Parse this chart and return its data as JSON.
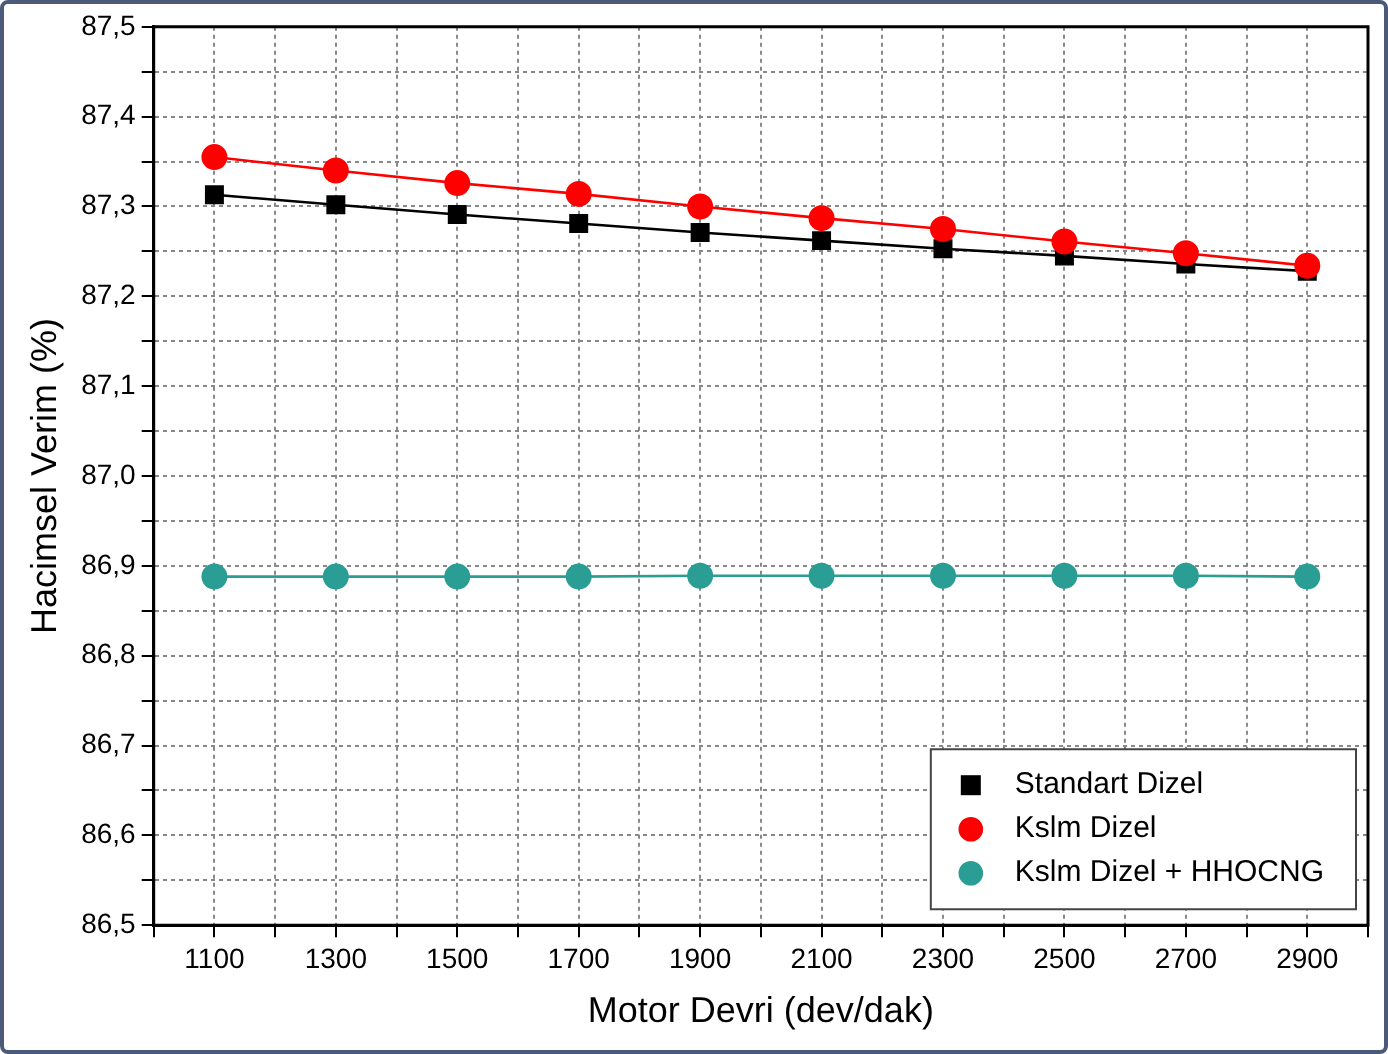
{
  "chart_data": {
    "type": "line",
    "xlabel": "Motor Devri (dev/dak)",
    "ylabel": "Hacimsel Verim (%)",
    "x": [
      1100,
      1300,
      1500,
      1700,
      1900,
      2100,
      2300,
      2500,
      2700,
      2900
    ],
    "series": [
      {
        "name": "Standart Dizel",
        "color": "#000000",
        "marker": "square",
        "values": [
          87.313,
          87.302,
          87.291,
          87.281,
          87.271,
          87.262,
          87.253,
          87.245,
          87.236,
          87.228
        ]
      },
      {
        "name": "Kslm Dizel",
        "color": "#ff0000",
        "marker": "circle",
        "values": [
          87.355,
          87.34,
          87.326,
          87.314,
          87.3,
          87.287,
          87.275,
          87.261,
          87.248,
          87.234
        ]
      },
      {
        "name": "Kslm Dizel + HHOCNG",
        "color": "#2a9d95",
        "marker": "circle",
        "values": [
          86.888,
          86.888,
          86.888,
          86.888,
          86.889,
          86.889,
          86.889,
          86.889,
          86.889,
          86.888
        ]
      }
    ],
    "xlim": [
      1000,
      3000
    ],
    "xticks": [
      {
        "value": 1000,
        "label": null
      },
      1100,
      {
        "value": 1200,
        "label": null
      },
      1300,
      {
        "value": 1400,
        "label": null
      },
      1500,
      {
        "value": 1600,
        "label": null
      },
      1700,
      {
        "value": 1800,
        "label": null
      },
      1900,
      {
        "value": 2000,
        "label": null
      },
      2100,
      {
        "value": 2200,
        "label": null
      },
      2300,
      {
        "value": 2400,
        "label": null
      },
      2500,
      {
        "value": 2600,
        "label": null
      },
      2700,
      {
        "value": 2800,
        "label": null
      },
      2900,
      {
        "value": 3000,
        "label": null
      }
    ],
    "ylim": [
      86.5,
      87.5
    ],
    "yticks": [
      {
        "value": 86.5,
        "label": "86,5"
      },
      {
        "value": 86.55,
        "label": null
      },
      {
        "value": 86.6,
        "label": "86,6"
      },
      {
        "value": 86.65,
        "label": null
      },
      {
        "value": 86.7,
        "label": "86,7"
      },
      {
        "value": 86.75,
        "label": null
      },
      {
        "value": 86.8,
        "label": "86,8"
      },
      {
        "value": 86.85,
        "label": null
      },
      {
        "value": 86.9,
        "label": "86,9"
      },
      {
        "value": 86.95,
        "label": null
      },
      {
        "value": 87.0,
        "label": "87,0"
      },
      {
        "value": 87.05,
        "label": null
      },
      {
        "value": 87.1,
        "label": "87,1"
      },
      {
        "value": 87.15,
        "label": null
      },
      {
        "value": 87.2,
        "label": "87,2"
      },
      {
        "value": 87.25,
        "label": null
      },
      {
        "value": 87.3,
        "label": "87,3"
      },
      {
        "value": 87.35,
        "label": null
      },
      {
        "value": 87.4,
        "label": "87,4"
      },
      {
        "value": 87.45,
        "label": null
      },
      {
        "value": 87.5,
        "label": "87,5"
      }
    ],
    "grid": true,
    "legend": "bottom right",
    "line_style": "solid"
  }
}
